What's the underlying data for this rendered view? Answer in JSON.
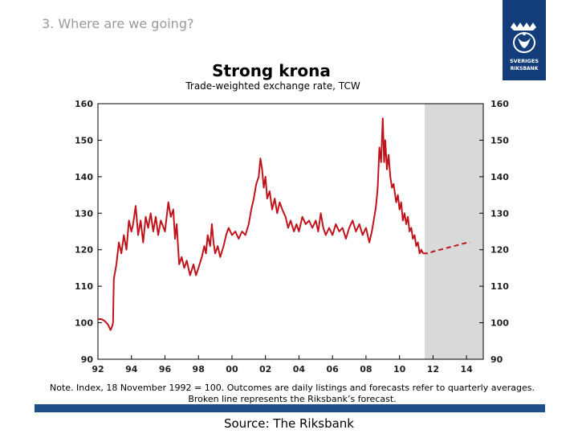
{
  "slide": {
    "section_title": "3. Where are we going?",
    "source": "Source: The Riksbank",
    "note": "Note. Index, 18 November 1992 = 100. Outcomes are daily listings and forecasts refer to quarterly averages. Broken line represents the Riksbank’s forecast.",
    "logo_text": "SVERIGES RIKSBANK",
    "colors": {
      "logo_bg": "#123c7a",
      "bar": "#1f4e8c",
      "series": "#c0141c",
      "forecast_shade": "#d9d9d9"
    }
  },
  "chart_data": {
    "type": "line",
    "title": "Strong krona",
    "subtitle": "Trade-weighted exchange rate, TCW",
    "xlabel": "",
    "ylabel": "",
    "x_ticks": [
      "92",
      "94",
      "96",
      "98",
      "00",
      "02",
      "04",
      "06",
      "08",
      "10",
      "12",
      "14"
    ],
    "xlim": [
      1992,
      2015
    ],
    "ylim": [
      90,
      160
    ],
    "y_ticks": [
      90,
      100,
      110,
      120,
      130,
      140,
      150,
      160
    ],
    "y_axis_both_sides": true,
    "forecast_region": [
      2011.5,
      2015
    ],
    "series": [
      {
        "style": "solid",
        "color": "#c0141c",
        "points": [
          [
            1992.0,
            101
          ],
          [
            1992.2,
            101
          ],
          [
            1992.4,
            100.5
          ],
          [
            1992.6,
            99.5
          ],
          [
            1992.75,
            98
          ],
          [
            1992.85,
            99
          ],
          [
            1992.9,
            100
          ],
          [
            1992.95,
            112
          ],
          [
            1993.1,
            116
          ],
          [
            1993.25,
            122
          ],
          [
            1993.4,
            119
          ],
          [
            1993.55,
            124
          ],
          [
            1993.7,
            120
          ],
          [
            1993.85,
            128
          ],
          [
            1994.0,
            125
          ],
          [
            1994.1,
            127
          ],
          [
            1994.25,
            132
          ],
          [
            1994.4,
            124
          ],
          [
            1994.55,
            128
          ],
          [
            1994.7,
            122
          ],
          [
            1994.85,
            129
          ],
          [
            1995.0,
            126
          ],
          [
            1995.15,
            130
          ],
          [
            1995.3,
            125
          ],
          [
            1995.45,
            129
          ],
          [
            1995.6,
            124
          ],
          [
            1995.75,
            128
          ],
          [
            1996.0,
            125
          ],
          [
            1996.2,
            133
          ],
          [
            1996.35,
            129
          ],
          [
            1996.5,
            131
          ],
          [
            1996.6,
            123
          ],
          [
            1996.7,
            127
          ],
          [
            1996.85,
            116
          ],
          [
            1997.0,
            118
          ],
          [
            1997.15,
            115
          ],
          [
            1997.3,
            117
          ],
          [
            1997.5,
            113
          ],
          [
            1997.7,
            116
          ],
          [
            1997.85,
            113
          ],
          [
            1998.0,
            115
          ],
          [
            1998.2,
            118
          ],
          [
            1998.35,
            121
          ],
          [
            1998.45,
            119
          ],
          [
            1998.55,
            124
          ],
          [
            1998.7,
            121
          ],
          [
            1998.8,
            127
          ],
          [
            1998.9,
            122
          ],
          [
            1999.0,
            119
          ],
          [
            1999.15,
            121
          ],
          [
            1999.3,
            118
          ],
          [
            1999.5,
            121
          ],
          [
            1999.65,
            124
          ],
          [
            1999.8,
            126
          ],
          [
            2000.0,
            124
          ],
          [
            2000.2,
            125
          ],
          [
            2000.4,
            123
          ],
          [
            2000.6,
            125
          ],
          [
            2000.8,
            124
          ],
          [
            2001.0,
            127
          ],
          [
            2001.15,
            131
          ],
          [
            2001.3,
            134
          ],
          [
            2001.45,
            138
          ],
          [
            2001.6,
            140
          ],
          [
            2001.7,
            145
          ],
          [
            2001.8,
            142
          ],
          [
            2001.9,
            137
          ],
          [
            2002.0,
            140
          ],
          [
            2002.1,
            134
          ],
          [
            2002.25,
            136
          ],
          [
            2002.4,
            131
          ],
          [
            2002.55,
            134
          ],
          [
            2002.7,
            130
          ],
          [
            2002.85,
            133
          ],
          [
            2003.0,
            131
          ],
          [
            2003.2,
            129
          ],
          [
            2003.35,
            126
          ],
          [
            2003.5,
            128
          ],
          [
            2003.7,
            125
          ],
          [
            2003.85,
            127
          ],
          [
            2004.0,
            125
          ],
          [
            2004.2,
            129
          ],
          [
            2004.4,
            127
          ],
          [
            2004.6,
            128
          ],
          [
            2004.8,
            126
          ],
          [
            2005.0,
            128
          ],
          [
            2005.15,
            125
          ],
          [
            2005.3,
            130
          ],
          [
            2005.45,
            126
          ],
          [
            2005.6,
            124
          ],
          [
            2005.8,
            126
          ],
          [
            2006.0,
            124
          ],
          [
            2006.2,
            127
          ],
          [
            2006.4,
            125
          ],
          [
            2006.6,
            126
          ],
          [
            2006.8,
            123
          ],
          [
            2007.0,
            126
          ],
          [
            2007.2,
            128
          ],
          [
            2007.4,
            125
          ],
          [
            2007.6,
            127
          ],
          [
            2007.8,
            124
          ],
          [
            2008.0,
            126
          ],
          [
            2008.2,
            122
          ],
          [
            2008.35,
            125
          ],
          [
            2008.5,
            129
          ],
          [
            2008.6,
            132
          ],
          [
            2008.7,
            137
          ],
          [
            2008.8,
            148
          ],
          [
            2008.9,
            144
          ],
          [
            2009.0,
            156
          ],
          [
            2009.08,
            144
          ],
          [
            2009.15,
            150
          ],
          [
            2009.25,
            142
          ],
          [
            2009.35,
            146
          ],
          [
            2009.45,
            140
          ],
          [
            2009.55,
            137
          ],
          [
            2009.65,
            138
          ],
          [
            2009.8,
            133
          ],
          [
            2009.9,
            135
          ],
          [
            2010.0,
            131
          ],
          [
            2010.1,
            133
          ],
          [
            2010.2,
            128
          ],
          [
            2010.3,
            130
          ],
          [
            2010.4,
            127
          ],
          [
            2010.5,
            129
          ],
          [
            2010.6,
            125
          ],
          [
            2010.7,
            126
          ],
          [
            2010.8,
            123
          ],
          [
            2010.9,
            124
          ],
          [
            2011.0,
            121
          ],
          [
            2011.1,
            122
          ],
          [
            2011.2,
            119
          ],
          [
            2011.3,
            120
          ],
          [
            2011.4,
            119
          ]
        ]
      },
      {
        "style": "dashed",
        "color": "#c0141c",
        "points": [
          [
            2011.4,
            119
          ],
          [
            2011.75,
            119
          ],
          [
            2012.0,
            119.5
          ],
          [
            2012.25,
            119.8
          ],
          [
            2012.5,
            120.1
          ],
          [
            2012.75,
            120.4
          ],
          [
            2013.0,
            120.7
          ],
          [
            2013.25,
            121.0
          ],
          [
            2013.5,
            121.3
          ],
          [
            2013.75,
            121.6
          ],
          [
            2014.0,
            121.9
          ],
          [
            2014.2,
            122
          ]
        ]
      }
    ]
  }
}
